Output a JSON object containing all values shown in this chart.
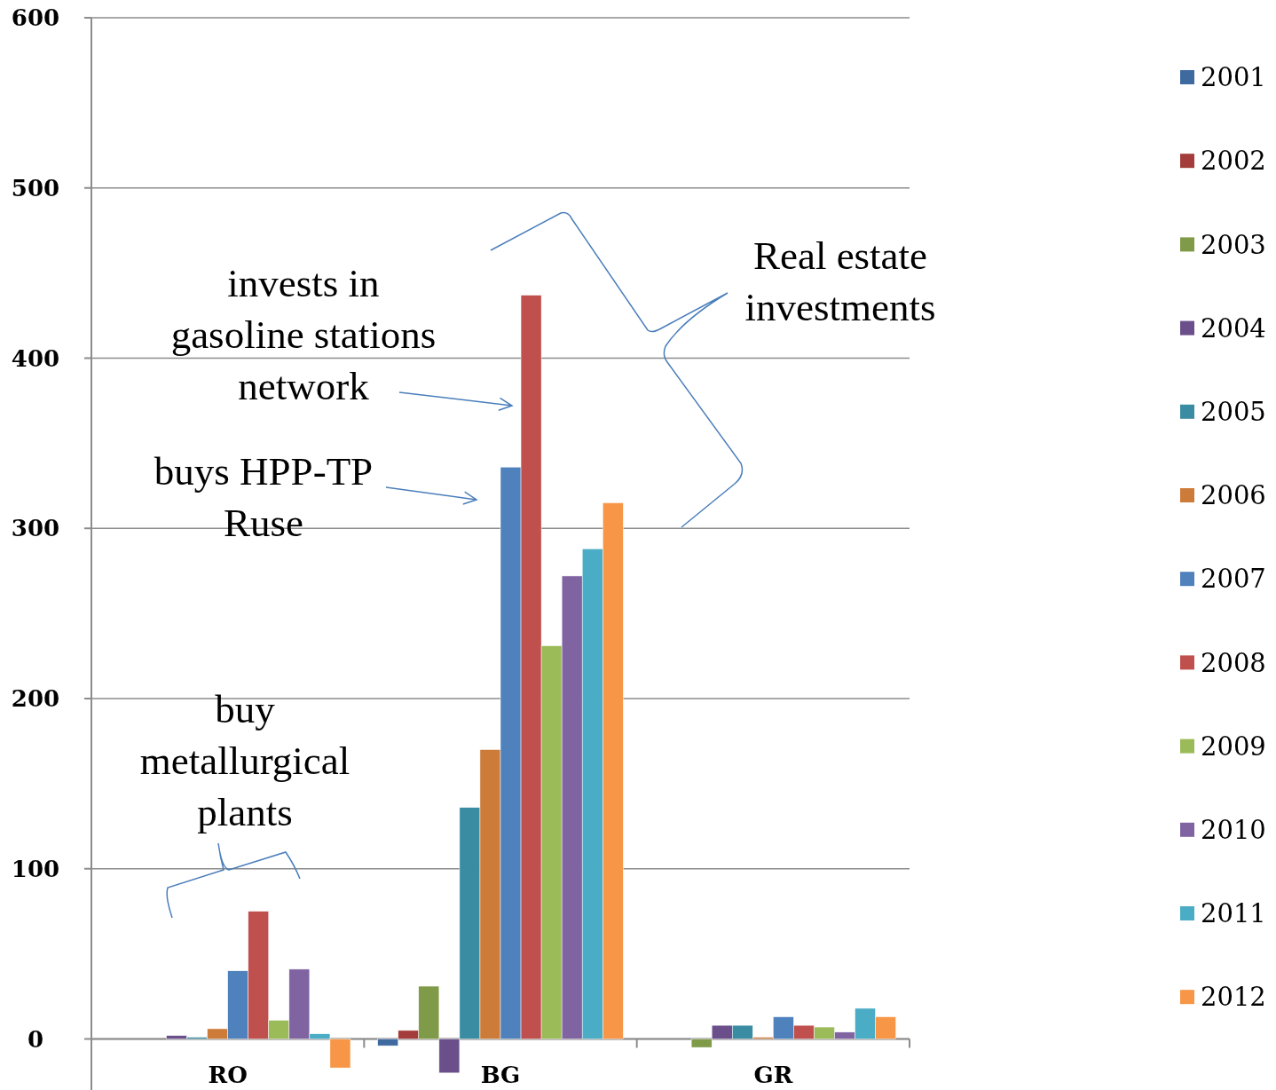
{
  "chart_data": {
    "type": "bar",
    "categories": [
      "RO",
      "BG",
      "GR"
    ],
    "series": [
      {
        "name": "2001",
        "color": "#3f6aa0",
        "values": [
          0,
          -4,
          0
        ]
      },
      {
        "name": "2002",
        "color": "#a33c3a",
        "values": [
          0,
          5,
          0
        ]
      },
      {
        "name": "2003",
        "color": "#7f9a48",
        "values": [
          0,
          31,
          -5
        ]
      },
      {
        "name": "2004",
        "color": "#6a4f8a",
        "values": [
          2,
          -20,
          8
        ]
      },
      {
        "name": "2005",
        "color": "#3a8ca3",
        "values": [
          1,
          136,
          8
        ]
      },
      {
        "name": "2006",
        "color": "#cd7b38",
        "values": [
          6,
          170,
          1
        ]
      },
      {
        "name": "2007",
        "color": "#4f81bd",
        "values": [
          40,
          336,
          13
        ]
      },
      {
        "name": "2008",
        "color": "#c0504d",
        "values": [
          75,
          437,
          8
        ]
      },
      {
        "name": "2009",
        "color": "#9bbb59",
        "values": [
          11,
          231,
          7
        ]
      },
      {
        "name": "2010",
        "color": "#8064a2",
        "values": [
          41,
          272,
          4
        ]
      },
      {
        "name": "2011",
        "color": "#4bacc6",
        "values": [
          3,
          288,
          18
        ]
      },
      {
        "name": "2012",
        "color": "#f79646",
        "values": [
          -17,
          315,
          13
        ]
      }
    ],
    "ylim": [
      -30,
      600
    ],
    "yticks": [
      0,
      100,
      200,
      300,
      400,
      500,
      600
    ],
    "grid": "y",
    "legend": "right",
    "annotations": [
      "invests in gasoline stations network",
      "buys HPP-TP Ruse",
      "buy metallurgical plants",
      "Real estate investments"
    ]
  }
}
